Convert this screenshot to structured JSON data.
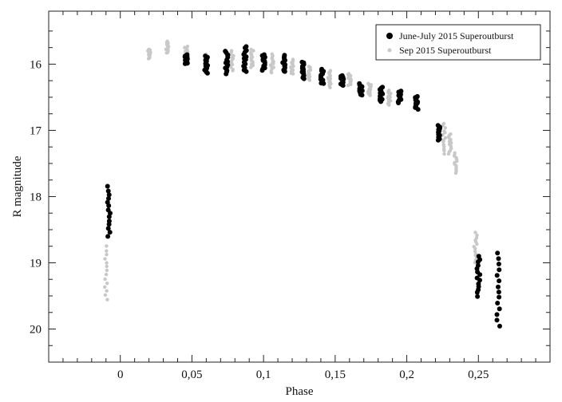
{
  "chart_data": {
    "type": "scatter",
    "title": "",
    "xlabel": "Phase",
    "ylabel": "R magnitude",
    "xlim": [
      -0.05,
      0.3
    ],
    "ylim": [
      15.2,
      20.5
    ],
    "y_inverted": true,
    "grid": false,
    "legend_position": "top-right",
    "x_ticks": [
      0,
      0.05,
      0.1,
      0.15,
      0.2,
      0.25
    ],
    "x_tick_labels": [
      "0",
      "0,05",
      "0,1",
      "0,15",
      "0,2",
      "0,25"
    ],
    "y_ticks": [
      16,
      17,
      18,
      19,
      20
    ],
    "y_tick_labels": [
      "16",
      "17",
      "18",
      "19",
      "20"
    ],
    "series": [
      {
        "name": "June-July 2015 Superoutburst",
        "color": "#000000",
        "clusters": [
          {
            "x": -0.008,
            "y_min": 17.85,
            "y_max": 18.6
          },
          {
            "x": 0.046,
            "y_min": 15.85,
            "y_max": 16.0
          },
          {
            "x": 0.06,
            "y_min": 15.88,
            "y_max": 16.13
          },
          {
            "x": 0.074,
            "y_min": 15.8,
            "y_max": 16.14
          },
          {
            "x": 0.087,
            "y_min": 15.73,
            "y_max": 16.12
          },
          {
            "x": 0.1,
            "y_min": 15.85,
            "y_max": 16.1
          },
          {
            "x": 0.114,
            "y_min": 15.87,
            "y_max": 16.12
          },
          {
            "x": 0.128,
            "y_min": 15.97,
            "y_max": 16.22
          },
          {
            "x": 0.141,
            "y_min": 16.08,
            "y_max": 16.3
          },
          {
            "x": 0.155,
            "y_min": 16.17,
            "y_max": 16.33
          },
          {
            "x": 0.168,
            "y_min": 16.3,
            "y_max": 16.47
          },
          {
            "x": 0.182,
            "y_min": 16.35,
            "y_max": 16.57
          },
          {
            "x": 0.195,
            "y_min": 16.4,
            "y_max": 16.58
          },
          {
            "x": 0.207,
            "y_min": 16.48,
            "y_max": 16.68
          },
          {
            "x": 0.222,
            "y_min": 16.93,
            "y_max": 17.15
          },
          {
            "x": 0.25,
            "y_min": 18.9,
            "y_max": 19.5
          },
          {
            "x": 0.264,
            "y_min": 18.85,
            "y_max": 19.95
          }
        ]
      },
      {
        "name": "Sep 2015 Superoutburst",
        "color": "#c8c8c8",
        "clusters": [
          {
            "x": -0.01,
            "y_min": 18.75,
            "y_max": 19.55
          },
          {
            "x": 0.02,
            "y_min": 15.78,
            "y_max": 15.92
          },
          {
            "x": 0.033,
            "y_min": 15.65,
            "y_max": 15.83
          },
          {
            "x": 0.046,
            "y_min": 15.73,
            "y_max": 15.95
          },
          {
            "x": 0.06,
            "y_min": 15.85,
            "y_max": 16.02
          },
          {
            "x": 0.078,
            "y_min": 15.8,
            "y_max": 16.1
          },
          {
            "x": 0.092,
            "y_min": 15.78,
            "y_max": 16.05
          },
          {
            "x": 0.106,
            "y_min": 15.85,
            "y_max": 16.12
          },
          {
            "x": 0.12,
            "y_min": 15.92,
            "y_max": 16.15
          },
          {
            "x": 0.132,
            "y_min": 16.03,
            "y_max": 16.25
          },
          {
            "x": 0.146,
            "y_min": 16.1,
            "y_max": 16.35
          },
          {
            "x": 0.16,
            "y_min": 16.15,
            "y_max": 16.32
          },
          {
            "x": 0.174,
            "y_min": 16.3,
            "y_max": 16.48
          },
          {
            "x": 0.188,
            "y_min": 16.4,
            "y_max": 16.62
          },
          {
            "x": 0.226,
            "y_min": 16.9,
            "y_max": 17.35
          },
          {
            "x": 0.23,
            "y_min": 17.05,
            "y_max": 17.35
          },
          {
            "x": 0.234,
            "y_min": 17.35,
            "y_max": 17.65
          },
          {
            "x": 0.248,
            "y_min": 18.55,
            "y_max": 19.0
          }
        ]
      }
    ]
  }
}
